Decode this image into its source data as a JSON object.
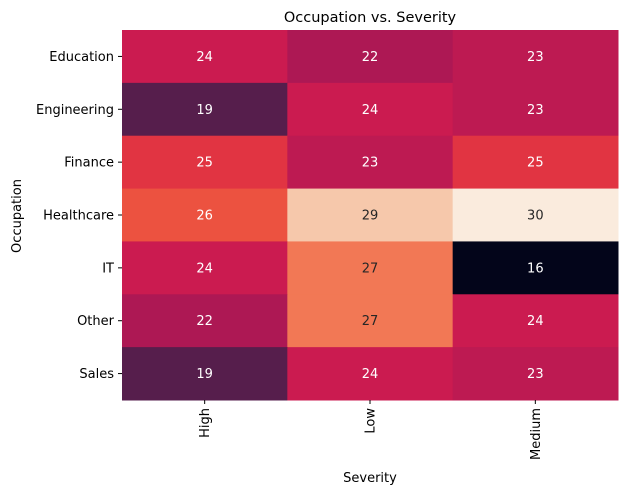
{
  "chart_data": {
    "type": "heatmap",
    "title": "Occupation vs. Severity",
    "xlabel": "Severity",
    "ylabel": "Occupation",
    "x_categories": [
      "High",
      "Low",
      "Medium"
    ],
    "y_categories": [
      "Education",
      "Engineering",
      "Finance",
      "Healthcare",
      "IT",
      "Other",
      "Sales"
    ],
    "values": [
      [
        24,
        22,
        23
      ],
      [
        19,
        24,
        23
      ],
      [
        25,
        23,
        25
      ],
      [
        26,
        29,
        30
      ],
      [
        24,
        27,
        16
      ],
      [
        22,
        27,
        24
      ],
      [
        19,
        24,
        23
      ]
    ],
    "value_range": [
      16,
      30
    ],
    "colormap": "rocket",
    "colorbar": false,
    "annotations": true,
    "x_tick_rotation": 90
  }
}
